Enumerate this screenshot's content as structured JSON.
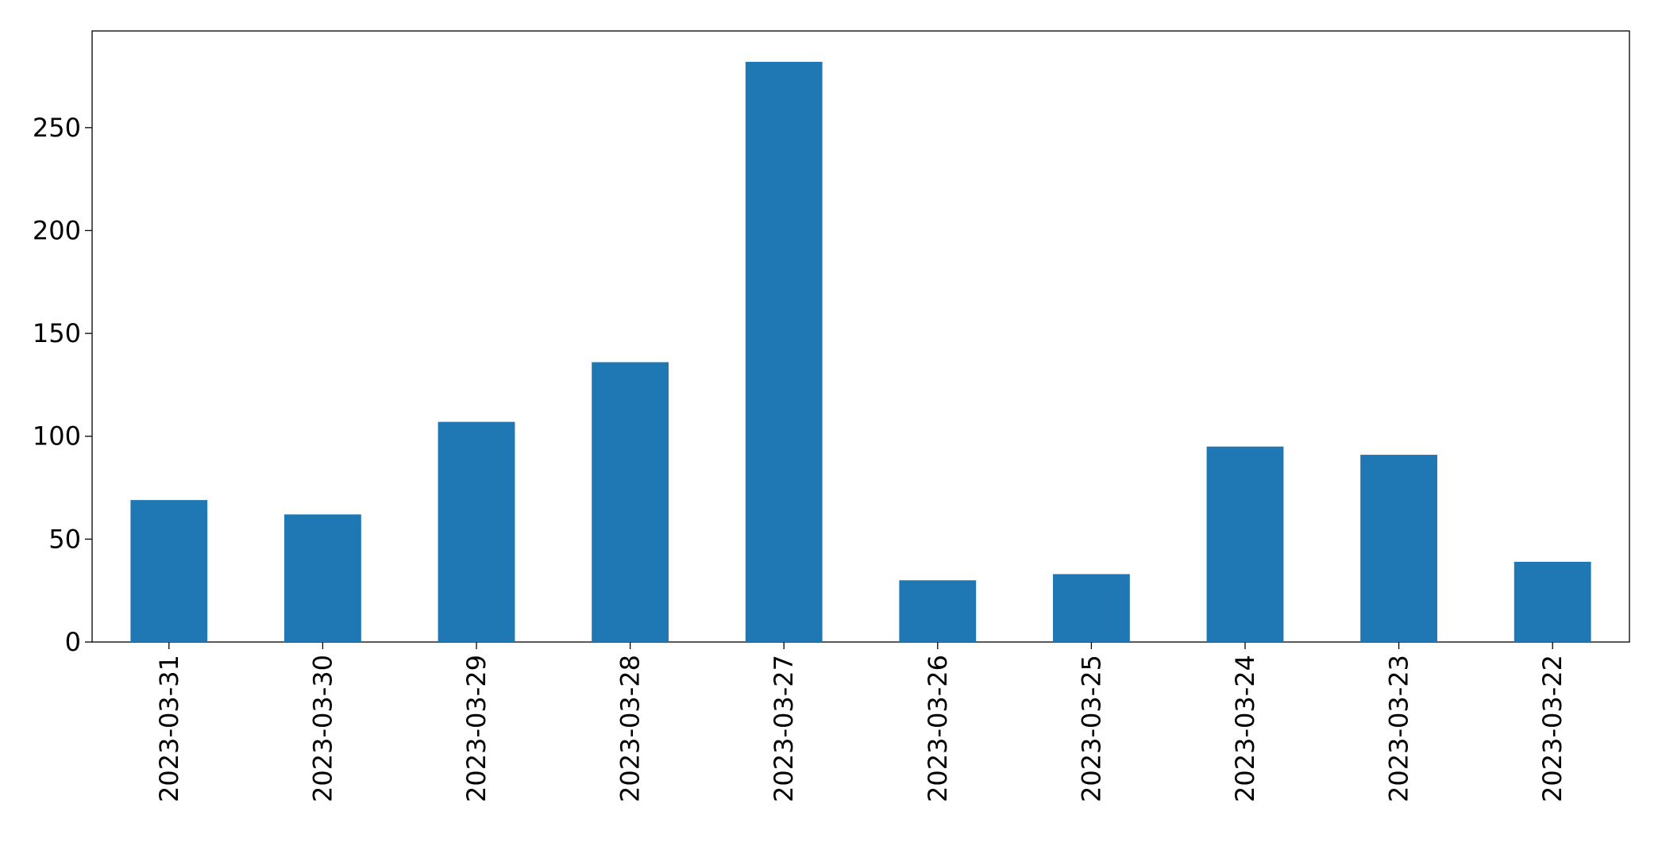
{
  "chart_data": {
    "type": "bar",
    "categories": [
      "2023-03-31",
      "2023-03-30",
      "2023-03-29",
      "2023-03-28",
      "2023-03-27",
      "2023-03-26",
      "2023-03-25",
      "2023-03-24",
      "2023-03-23",
      "2023-03-22"
    ],
    "values": [
      69,
      62,
      107,
      136,
      282,
      30,
      33,
      95,
      91,
      39
    ],
    "color": "#1f77b4",
    "ylim": [
      0,
      297
    ],
    "yticks": [
      0,
      50,
      100,
      150,
      200,
      250
    ],
    "grid": false
  }
}
